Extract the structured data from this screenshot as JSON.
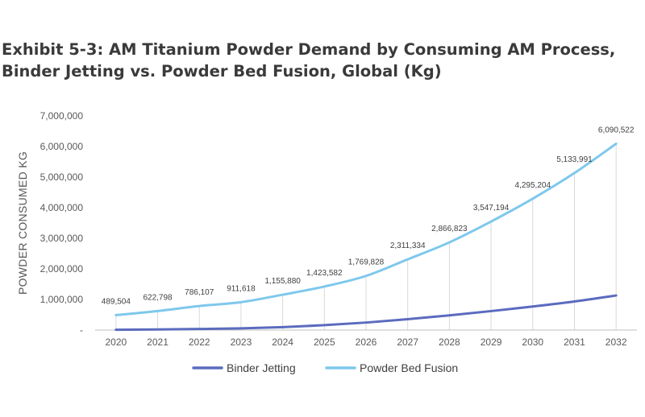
{
  "title_lines": [
    "Exhibit 5-3: AM Titanium Powder Demand by Consuming AM Process,",
    "Binder Jetting vs. Powder Bed Fusion, Global (Kg)"
  ],
  "chart_data": {
    "type": "line",
    "title": "Exhibit 5-3: AM Titanium Powder Demand by Consuming AM Process, Binder Jetting vs. Powder Bed Fusion, Global (Kg)",
    "xlabel": "",
    "ylabel": "POWDER CONSUMED KG",
    "x": [
      "2020",
      "2021",
      "2022",
      "2023",
      "2024",
      "2025",
      "2026",
      "2027",
      "2028",
      "2029",
      "2030",
      "2031",
      "2032"
    ],
    "ylim": [
      0,
      7000000
    ],
    "y_ticks": [
      0,
      1000000,
      2000000,
      3000000,
      4000000,
      5000000,
      6000000,
      7000000
    ],
    "y_tick_labels": [
      "-",
      "1,000,000",
      "2,000,000",
      "3,000,000",
      "4,000,000",
      "5,000,000",
      "6,000,000",
      "7,000,000"
    ],
    "grid": "vertical drop lines at each year",
    "legend_position": "bottom",
    "series": [
      {
        "name": "Binder Jetting",
        "color": "#5b6bbf",
        "values": [
          10000,
          20000,
          35000,
          55000,
          95000,
          160000,
          245000,
          355000,
          480000,
          620000,
          770000,
          935000,
          1130000
        ],
        "labels": []
      },
      {
        "name": "Powder Bed Fusion",
        "color": "#7ec8ec",
        "values": [
          489504,
          622798,
          786107,
          911618,
          1155880,
          1423582,
          1769828,
          2311334,
          2866823,
          3547194,
          4295204,
          5133991,
          6090522
        ],
        "labels": [
          "489,504",
          "622,798",
          "786,107",
          "911,618",
          "1,155,880",
          "1,423,582",
          "1,769,828",
          "2,311,334",
          "2,866,823",
          "3,547,194",
          "4,295,204",
          "5,133,991",
          "6,090,522"
        ]
      }
    ]
  }
}
